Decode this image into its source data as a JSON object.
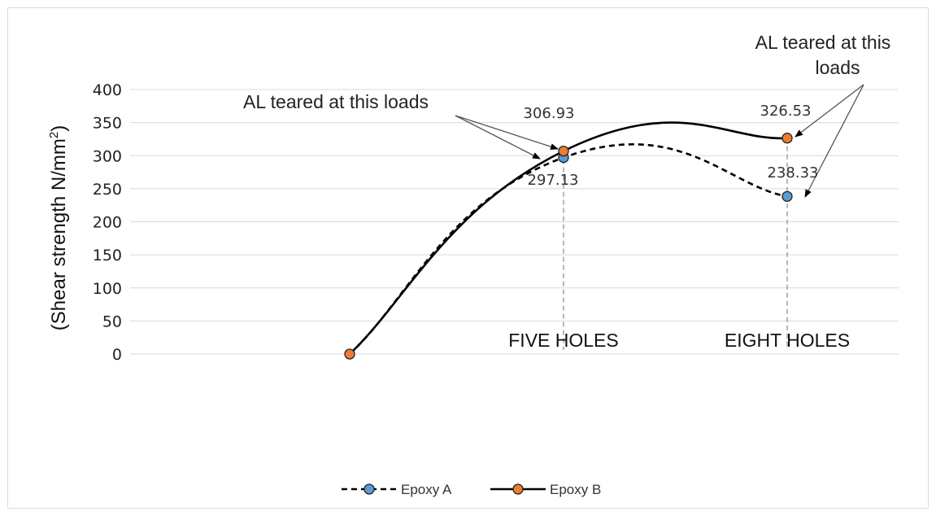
{
  "chart_data": {
    "type": "line",
    "title": "",
    "ylabel": "(Shear strength N/mm",
    "ylabel_sup": "2",
    "ylabel_end": ")",
    "ylim": [
      0,
      400
    ],
    "yticks": [
      0,
      50,
      100,
      150,
      200,
      250,
      300,
      350,
      400
    ],
    "categories": [
      "",
      "FIVE HOLES",
      "EIGHT HOLES"
    ],
    "grid": true,
    "legend_position": "bottom",
    "series": [
      {
        "name": "Epoxy A",
        "values": [
          0,
          297.13,
          238.33
        ],
        "labels": [
          "",
          "297.13",
          "238.33"
        ],
        "color": "#5b9bd5",
        "dash": true
      },
      {
        "name": "Epoxy B",
        "values": [
          0,
          306.93,
          326.53
        ],
        "labels": [
          "",
          "306.93",
          "326.53"
        ],
        "color": "#ed7d31",
        "dash": false
      }
    ],
    "annotations": [
      {
        "lines": [
          "AL teared at this loads"
        ]
      },
      {
        "lines": [
          "AL teared at this",
          "loads"
        ]
      }
    ]
  }
}
